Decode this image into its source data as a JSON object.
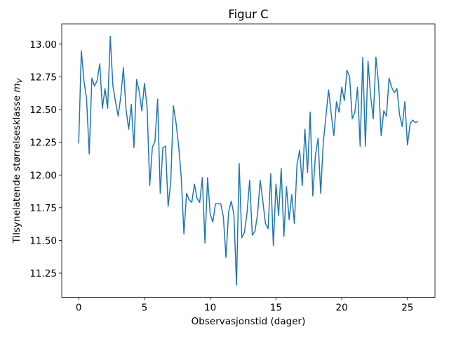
{
  "chart_data": {
    "type": "line",
    "title": "Figur C",
    "xlabel": "Observasjonstid (dager)",
    "ylabel": {
      "text": "Tilsynelatende størrelsesklasse",
      "symbol": "m",
      "subscript": "V"
    },
    "x": [
      0,
      0.2,
      0.4,
      0.6,
      0.8,
      1.0,
      1.2,
      1.4,
      1.6,
      1.8,
      2.0,
      2.2,
      2.4,
      2.6,
      2.8,
      3.0,
      3.2,
      3.4,
      3.6,
      3.8,
      4.0,
      4.2,
      4.4,
      4.6,
      4.8,
      5.0,
      5.2,
      5.4,
      5.6,
      5.8,
      6.0,
      6.2,
      6.4,
      6.6,
      6.8,
      7.0,
      7.2,
      7.4,
      7.6,
      7.8,
      8.0,
      8.2,
      8.4,
      8.6,
      8.8,
      9.0,
      9.2,
      9.4,
      9.6,
      9.8,
      10.0,
      10.2,
      10.4,
      10.6,
      10.8,
      11.0,
      11.2,
      11.4,
      11.6,
      11.8,
      12.0,
      12.2,
      12.4,
      12.6,
      12.8,
      13.0,
      13.2,
      13.4,
      13.6,
      13.8,
      14.0,
      14.2,
      14.4,
      14.6,
      14.8,
      15.0,
      15.2,
      15.4,
      15.6,
      15.8,
      16.0,
      16.2,
      16.4,
      16.6,
      16.8,
      17.0,
      17.2,
      17.4,
      17.6,
      17.8,
      18.0,
      18.2,
      18.4,
      18.6,
      18.8,
      19.0,
      19.2,
      19.4,
      19.6,
      19.8,
      20.0,
      20.2,
      20.4,
      20.6,
      20.8,
      21.0,
      21.2,
      21.4,
      21.6,
      21.8,
      22.0,
      22.2,
      22.4,
      22.6,
      22.8,
      23.0,
      23.2,
      23.4,
      23.6,
      23.8,
      24.0,
      24.2,
      24.4,
      24.6,
      24.8,
      25.0,
      25.2,
      25.4,
      25.6,
      25.8
    ],
    "series": [
      {
        "color": "#1f77b4",
        "values": [
          12.24,
          12.95,
          12.72,
          12.58,
          12.16,
          12.74,
          12.68,
          12.72,
          12.85,
          12.51,
          12.66,
          12.51,
          13.06,
          12.68,
          12.56,
          12.45,
          12.6,
          12.82,
          12.5,
          12.35,
          12.54,
          12.21,
          12.73,
          12.64,
          12.49,
          12.7,
          12.52,
          11.92,
          12.21,
          12.26,
          12.58,
          11.86,
          12.21,
          12.22,
          11.76,
          11.95,
          12.53,
          12.4,
          12.22,
          11.98,
          11.55,
          11.86,
          11.81,
          11.79,
          11.93,
          11.82,
          11.79,
          11.98,
          11.48,
          11.98,
          11.7,
          11.64,
          11.78,
          11.78,
          11.78,
          11.68,
          11.37,
          11.72,
          11.8,
          11.7,
          11.16,
          12.09,
          11.52,
          11.56,
          11.71,
          11.96,
          11.54,
          11.57,
          11.7,
          11.96,
          11.8,
          11.63,
          11.59,
          12.01,
          11.46,
          11.93,
          11.69,
          12.05,
          11.53,
          11.91,
          11.66,
          11.85,
          11.63,
          12.08,
          12.19,
          11.92,
          12.35,
          12.02,
          12.48,
          11.84,
          12.15,
          12.28,
          11.86,
          12.25,
          12.45,
          12.65,
          12.47,
          12.3,
          12.56,
          12.48,
          12.67,
          12.57,
          12.8,
          12.75,
          12.43,
          12.48,
          12.67,
          12.22,
          12.9,
          12.22,
          12.87,
          12.6,
          12.43,
          12.9,
          12.7,
          12.3,
          12.49,
          12.45,
          12.74,
          12.67,
          12.63,
          12.66,
          12.46,
          12.37,
          12.56,
          12.23,
          12.39,
          12.42,
          12.4,
          12.41
        ]
      }
    ],
    "xlim": [
      -1.29,
      27.09
    ],
    "xticks": [
      0,
      5,
      10,
      15,
      20,
      25
    ],
    "ylim": [
      11.065,
      13.155
    ],
    "yticks": [
      {
        "value": 11.25,
        "label": "11.25"
      },
      {
        "value": 11.5,
        "label": "11.50"
      },
      {
        "value": 11.75,
        "label": "11.75"
      },
      {
        "value": 12,
        "label": "12.00"
      },
      {
        "value": 12.25,
        "label": "12.25"
      },
      {
        "value": 12.5,
        "label": "12.50"
      },
      {
        "value": 12.75,
        "label": "12.75"
      },
      {
        "value": 13,
        "label": "13.00"
      }
    ],
    "grid": false
  }
}
